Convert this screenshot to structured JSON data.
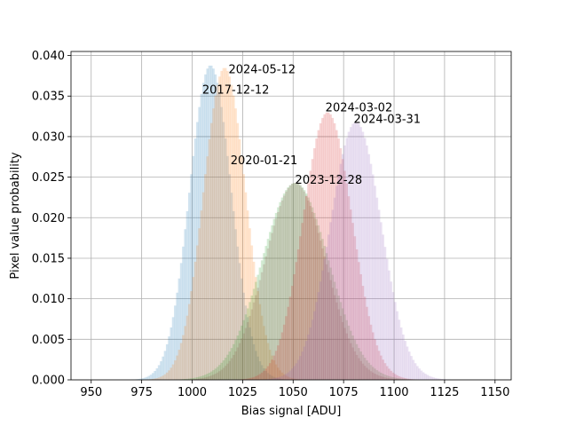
{
  "chart_data": {
    "type": "histogram",
    "title": "",
    "xlabel": "Bias signal [ADU]",
    "ylabel": "Pixel value probability",
    "xlim": [
      940,
      1158
    ],
    "ylim": [
      0,
      0.0405
    ],
    "xticks": [
      950,
      975,
      1000,
      1025,
      1050,
      1075,
      1100,
      1125,
      1150
    ],
    "yticks": [
      0.0,
      0.005,
      0.01,
      0.015,
      0.02,
      0.025,
      0.03,
      0.035,
      0.04
    ],
    "xtick_labels": [
      "950",
      "975",
      "1000",
      "1025",
      "1050",
      "1075",
      "1100",
      "1125",
      "1150"
    ],
    "ytick_labels": [
      "0.000",
      "0.005",
      "0.010",
      "0.015",
      "0.020",
      "0.025",
      "0.030",
      "0.035",
      "0.040"
    ],
    "grid": true,
    "bin_width": 1,
    "series": [
      {
        "name": "2017-12-12",
        "color": "#1f77b4",
        "peak_x": 1009,
        "peak_y": 0.0388,
        "sigma": 10.3,
        "label_x": 1005,
        "label_y": 0.0353
      },
      {
        "name": "2024-05-12",
        "color": "#ff7f0e",
        "peak_x": 1016,
        "peak_y": 0.0385,
        "sigma": 10.4,
        "label_x": 1018,
        "label_y": 0.0378
      },
      {
        "name": "2020-01-21",
        "color": "#2ca02c",
        "peak_x": 1051,
        "peak_y": 0.0243,
        "sigma": 16.5,
        "label_x": 1019,
        "label_y": 0.0266
      },
      {
        "name": "2023-12-28",
        "color": "#8c564b",
        "peak_x": 1051,
        "peak_y": 0.0243,
        "sigma": 15.0,
        "label_x": 1051,
        "label_y": 0.0242
      },
      {
        "name": "2024-03-02",
        "color": "#d62728",
        "peak_x": 1067,
        "peak_y": 0.033,
        "sigma": 12.1,
        "label_x": 1066,
        "label_y": 0.0331
      },
      {
        "name": "2024-03-31",
        "color": "#9467bd",
        "peak_x": 1081,
        "peak_y": 0.0318,
        "sigma": 12.6,
        "label_x": 1080,
        "label_y": 0.0317
      }
    ]
  }
}
